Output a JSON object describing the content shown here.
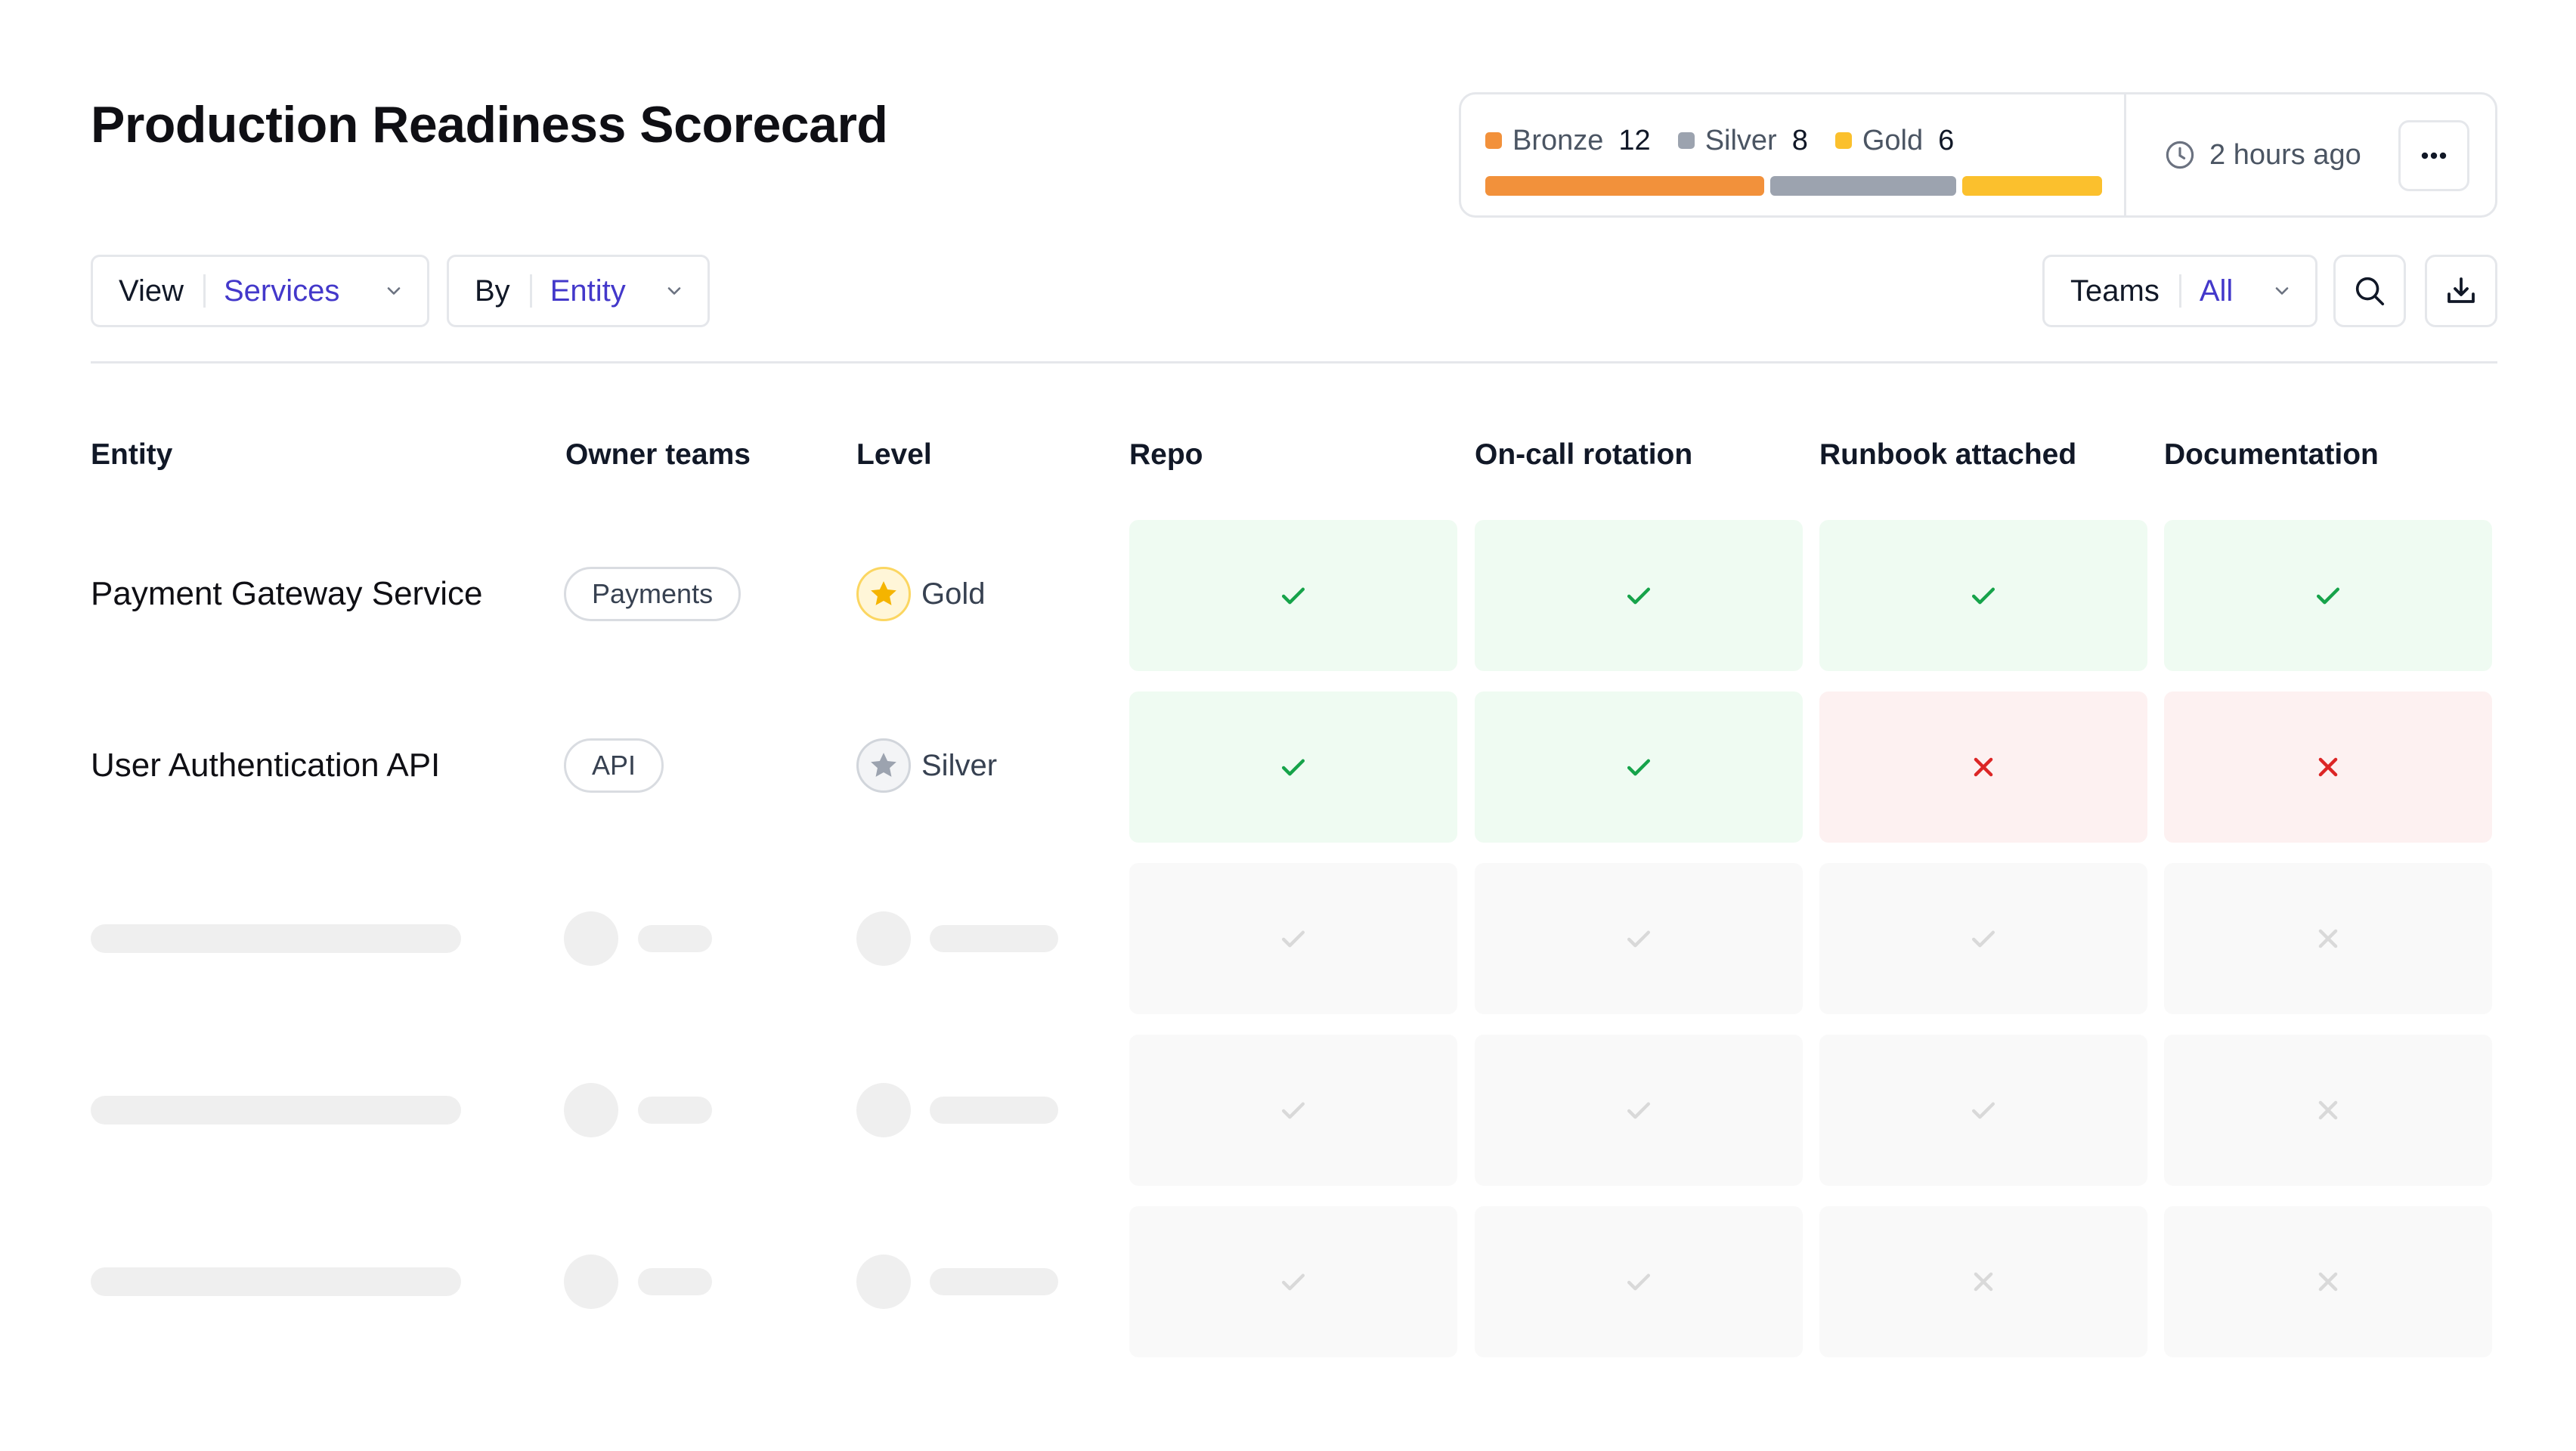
{
  "page": {
    "title": "Production Readiness Scorecard"
  },
  "summary": {
    "levels": [
      {
        "name": "Bronze",
        "count": "12",
        "color": "#f2913b"
      },
      {
        "name": "Silver",
        "count": "8",
        "color": "#9ca3af"
      },
      {
        "name": "Gold",
        "count": "6",
        "color": "#fbc02d"
      }
    ],
    "updated": "2 hours ago"
  },
  "filters": {
    "view": {
      "label": "View",
      "value": "Services"
    },
    "by": {
      "label": "By",
      "value": "Entity"
    },
    "teams": {
      "label": "Teams",
      "value": "All"
    }
  },
  "table": {
    "columns": [
      "Entity",
      "Owner teams",
      "Level",
      "Repo",
      "On-call rotation",
      "Runbook attached",
      "Documentation"
    ],
    "rows": [
      {
        "entity": "Payment Gateway Service",
        "team": "Payments",
        "level": "Gold",
        "checks": [
          "pass",
          "pass",
          "pass",
          "pass"
        ]
      },
      {
        "entity": "User Authentication API",
        "team": "API",
        "level": "Silver",
        "checks": [
          "pass",
          "pass",
          "fail",
          "fail"
        ]
      }
    ],
    "loading_rows": [
      [
        "pass",
        "pass",
        "pass",
        "fail"
      ],
      [
        "pass",
        "pass",
        "pass",
        "fail"
      ],
      [
        "pass",
        "pass",
        "fail",
        "fail"
      ]
    ]
  }
}
